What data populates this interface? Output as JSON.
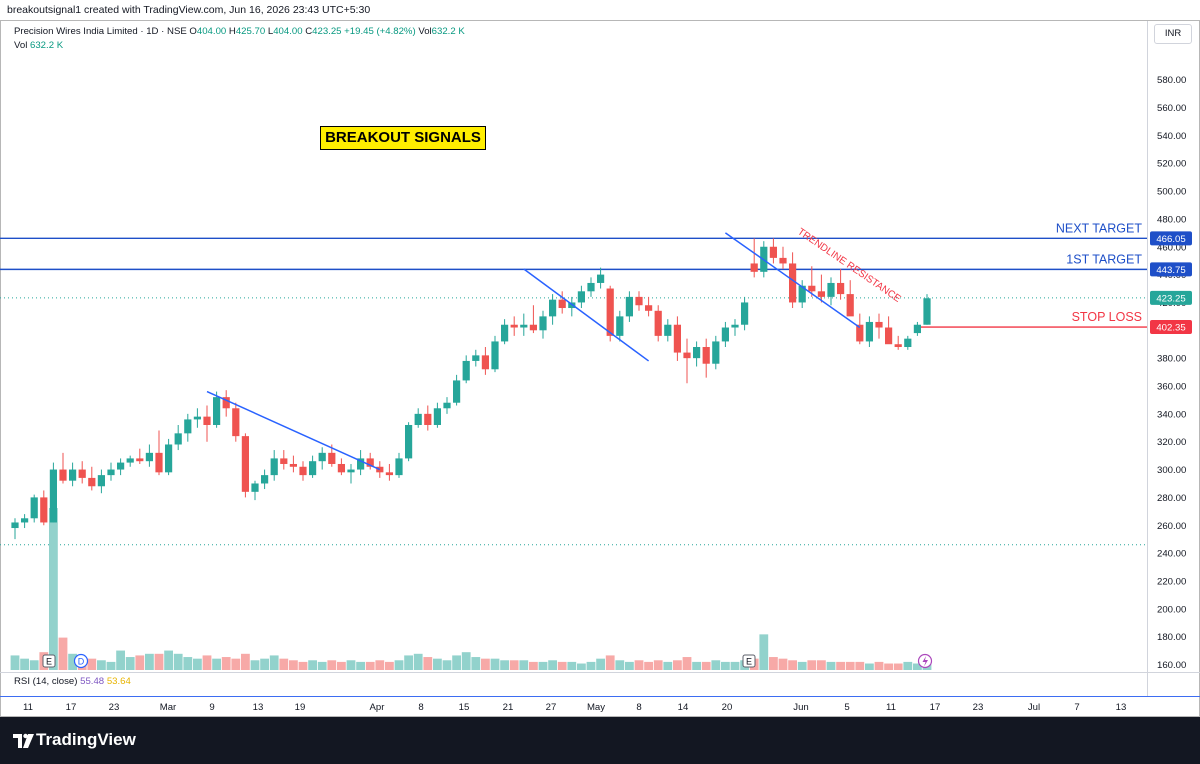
{
  "topbar": {
    "text": "breakoutsignal1 created with TradingView.com, Jun 16, 2026 23:43 UTC+5:30"
  },
  "header": {
    "symbol": "Precision Wires India Limited · 1D · NSE",
    "o_label": "O",
    "o_value": "404.00",
    "h_label": "H",
    "h_value": "425.70",
    "l_label": "L",
    "l_value": "404.00",
    "c_label": "C",
    "c_value": "423.25",
    "change": "+19.45 (+4.82%)",
    "vol_label": "Vol",
    "vol_value": "632.2 K",
    "vol_line_label": "Vol",
    "vol_line_value": "632.2 K"
  },
  "currency": "INR",
  "annotation_title": "BREAKOUT SIGNALS",
  "rsi": {
    "label": "RSI (14, close)",
    "value1": "55.48",
    "value2": "53.64"
  },
  "footer": {
    "brand": "TradingView"
  },
  "colors": {
    "up": "#26a69a",
    "down": "#ef5350",
    "line": "#2962ff",
    "target": "#1e4fc8",
    "stop": "#f23645"
  },
  "chart_data": {
    "type": "candlestick",
    "title": "Precision Wires India Limited · 1D · NSE",
    "ylim": [
      145,
      605
    ],
    "y_ticks": [
      160,
      180,
      200,
      220,
      240,
      260,
      280,
      300,
      320,
      340,
      360,
      380,
      400,
      420,
      440,
      460,
      480,
      500,
      520,
      540,
      560,
      580
    ],
    "x_tick_labels": [
      "11",
      "17",
      "23",
      "Mar",
      "9",
      "13",
      "19",
      "Apr",
      "8",
      "15",
      "21",
      "27",
      "May",
      "8",
      "14",
      "20",
      "Jun",
      "5",
      "11",
      "17",
      "23",
      "Jul",
      "7",
      "13"
    ],
    "candles": [
      [
        258,
        265,
        250,
        262
      ],
      [
        262,
        268,
        258,
        265
      ],
      [
        265,
        282,
        262,
        280
      ],
      [
        280,
        285,
        260,
        262
      ],
      [
        262,
        305,
        262,
        300
      ],
      [
        300,
        312,
        290,
        292
      ],
      [
        292,
        305,
        288,
        300
      ],
      [
        300,
        306,
        290,
        294
      ],
      [
        294,
        302,
        285,
        288
      ],
      [
        288,
        300,
        283,
        296
      ],
      [
        296,
        305,
        292,
        300
      ],
      [
        300,
        308,
        296,
        305
      ],
      [
        305,
        310,
        302,
        308
      ],
      [
        308,
        315,
        304,
        306
      ],
      [
        306,
        318,
        302,
        312
      ],
      [
        312,
        328,
        296,
        298
      ],
      [
        298,
        322,
        296,
        318
      ],
      [
        318,
        332,
        314,
        326
      ],
      [
        326,
        340,
        320,
        336
      ],
      [
        336,
        344,
        330,
        338
      ],
      [
        338,
        346,
        320,
        332
      ],
      [
        332,
        356,
        330,
        352
      ],
      [
        352,
        357,
        338,
        344
      ],
      [
        344,
        348,
        320,
        324
      ],
      [
        324,
        326,
        280,
        284
      ],
      [
        284,
        292,
        278,
        290
      ],
      [
        290,
        300,
        286,
        296
      ],
      [
        296,
        314,
        292,
        308
      ],
      [
        308,
        314,
        300,
        304
      ],
      [
        304,
        310,
        298,
        302
      ],
      [
        302,
        306,
        292,
        296
      ],
      [
        296,
        310,
        294,
        306
      ],
      [
        306,
        316,
        300,
        312
      ],
      [
        312,
        318,
        302,
        304
      ],
      [
        304,
        308,
        296,
        298
      ],
      [
        298,
        304,
        290,
        300
      ],
      [
        300,
        314,
        296,
        308
      ],
      [
        308,
        312,
        300,
        302
      ],
      [
        302,
        306,
        294,
        298
      ],
      [
        298,
        304,
        292,
        296
      ],
      [
        296,
        312,
        294,
        308
      ],
      [
        308,
        334,
        306,
        332
      ],
      [
        332,
        344,
        330,
        340
      ],
      [
        340,
        346,
        328,
        332
      ],
      [
        332,
        348,
        330,
        344
      ],
      [
        344,
        352,
        340,
        348
      ],
      [
        348,
        368,
        346,
        364
      ],
      [
        364,
        382,
        362,
        378
      ],
      [
        378,
        386,
        374,
        382
      ],
      [
        382,
        388,
        368,
        372
      ],
      [
        372,
        396,
        370,
        392
      ],
      [
        392,
        408,
        390,
        404
      ],
      [
        404,
        410,
        396,
        402
      ],
      [
        402,
        412,
        396,
        404
      ],
      [
        404,
        418,
        398,
        400
      ],
      [
        400,
        414,
        394,
        410
      ],
      [
        410,
        426,
        404,
        422
      ],
      [
        422,
        428,
        412,
        416
      ],
      [
        416,
        424,
        410,
        420
      ],
      [
        420,
        432,
        416,
        428
      ],
      [
        428,
        438,
        424,
        434
      ],
      [
        434,
        445,
        430,
        440
      ],
      [
        430,
        432,
        392,
        396
      ],
      [
        396,
        414,
        392,
        410
      ],
      [
        410,
        428,
        406,
        424
      ],
      [
        424,
        428,
        414,
        418
      ],
      [
        418,
        424,
        410,
        414
      ],
      [
        414,
        418,
        392,
        396
      ],
      [
        396,
        408,
        392,
        404
      ],
      [
        404,
        410,
        378,
        384
      ],
      [
        384,
        394,
        362,
        380
      ],
      [
        380,
        392,
        374,
        388
      ],
      [
        388,
        394,
        366,
        376
      ],
      [
        376,
        396,
        372,
        392
      ],
      [
        392,
        406,
        388,
        402
      ],
      [
        402,
        408,
        396,
        404
      ],
      [
        404,
        424,
        400,
        420
      ],
      [
        448,
        466,
        438,
        442
      ],
      [
        442,
        464,
        438,
        460
      ],
      [
        460,
        466,
        448,
        452
      ],
      [
        452,
        460,
        444,
        448
      ],
      [
        448,
        456,
        416,
        420
      ],
      [
        420,
        436,
        416,
        432
      ],
      [
        432,
        446,
        424,
        428
      ],
      [
        428,
        440,
        420,
        424
      ],
      [
        424,
        438,
        418,
        434
      ],
      [
        434,
        444,
        422,
        426
      ],
      [
        426,
        436,
        412,
        410
      ],
      [
        404,
        412,
        390,
        392
      ],
      [
        392,
        410,
        388,
        406
      ],
      [
        406,
        412,
        394,
        402
      ],
      [
        402,
        410,
        392,
        390
      ],
      [
        390,
        396,
        386,
        388
      ],
      [
        388,
        396,
        386,
        394
      ],
      [
        398,
        406,
        396,
        404
      ],
      [
        404,
        426,
        404,
        423
      ]
    ],
    "volume_note": "Vol 632.2 K (last bar)",
    "volume_relative": [
      0.09,
      0.07,
      0.06,
      0.11,
      1.0,
      0.2,
      0.1,
      0.08,
      0.07,
      0.06,
      0.05,
      0.12,
      0.08,
      0.09,
      0.1,
      0.1,
      0.12,
      0.1,
      0.08,
      0.07,
      0.09,
      0.07,
      0.08,
      0.07,
      0.1,
      0.06,
      0.07,
      0.09,
      0.07,
      0.06,
      0.05,
      0.06,
      0.05,
      0.06,
      0.05,
      0.06,
      0.05,
      0.05,
      0.06,
      0.05,
      0.06,
      0.09,
      0.1,
      0.08,
      0.07,
      0.06,
      0.09,
      0.11,
      0.08,
      0.07,
      0.07,
      0.06,
      0.06,
      0.06,
      0.05,
      0.05,
      0.06,
      0.05,
      0.05,
      0.04,
      0.05,
      0.07,
      0.09,
      0.06,
      0.05,
      0.06,
      0.05,
      0.06,
      0.05,
      0.06,
      0.08,
      0.05,
      0.05,
      0.06,
      0.05,
      0.05,
      0.06,
      0.07,
      0.22,
      0.08,
      0.07,
      0.06,
      0.05,
      0.06,
      0.06,
      0.05,
      0.05,
      0.05,
      0.05,
      0.04,
      0.05,
      0.04,
      0.04,
      0.05,
      0.04,
      0.05
    ],
    "levels": [
      {
        "label": "NEXT TARGET",
        "value": 466.05,
        "price_label": "466.05",
        "kind": "target"
      },
      {
        "label": "1ST TARGET",
        "value": 443.75,
        "price_label": "443.75",
        "kind": "target"
      },
      {
        "label": "STOP LOSS",
        "value": 402.35,
        "price_label": "402.35",
        "kind": "stop"
      }
    ],
    "last_price": {
      "value": 423.25,
      "label": "423.25"
    },
    "dotted_level": 246,
    "trendlines": [
      {
        "from": [
          20,
          356
        ],
        "to": [
          38,
          300
        ]
      },
      {
        "from": [
          53,
          444
        ],
        "to": [
          66,
          378
        ]
      },
      {
        "from": [
          74,
          470
        ],
        "to": [
          88,
          402
        ]
      }
    ],
    "trendline_label": "TRENDLINE RESISTANCE",
    "event_markers": [
      {
        "bar": 3,
        "label": "E"
      },
      {
        "bar": 5,
        "label": "D"
      },
      {
        "bar": 77,
        "label": "E"
      }
    ]
  }
}
